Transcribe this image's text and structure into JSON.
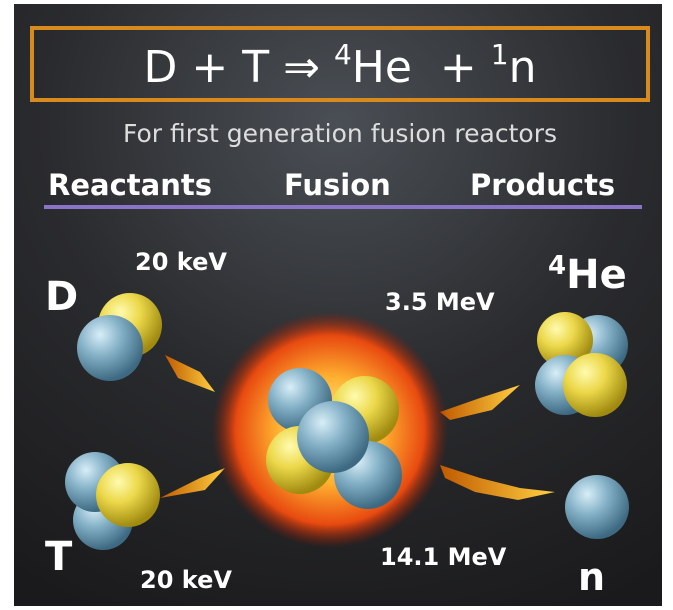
{
  "equation": {
    "left": "D + T ⇒ ",
    "he_mass": "4",
    "he": "He  + ",
    "n_mass": "1",
    "n": "n"
  },
  "subtitle": "For first generation fusion reactors",
  "headers": [
    "Reactants",
    "Fusion",
    "Products"
  ],
  "reactants": {
    "d_label": "D",
    "d_energy": "20 keV",
    "t_label": "T",
    "t_energy": "20 keV"
  },
  "products": {
    "he_mass": "4",
    "he_label": "He",
    "he_energy": "3.5 MeV",
    "n_label": "n",
    "n_energy": "14.1 MeV"
  }
}
